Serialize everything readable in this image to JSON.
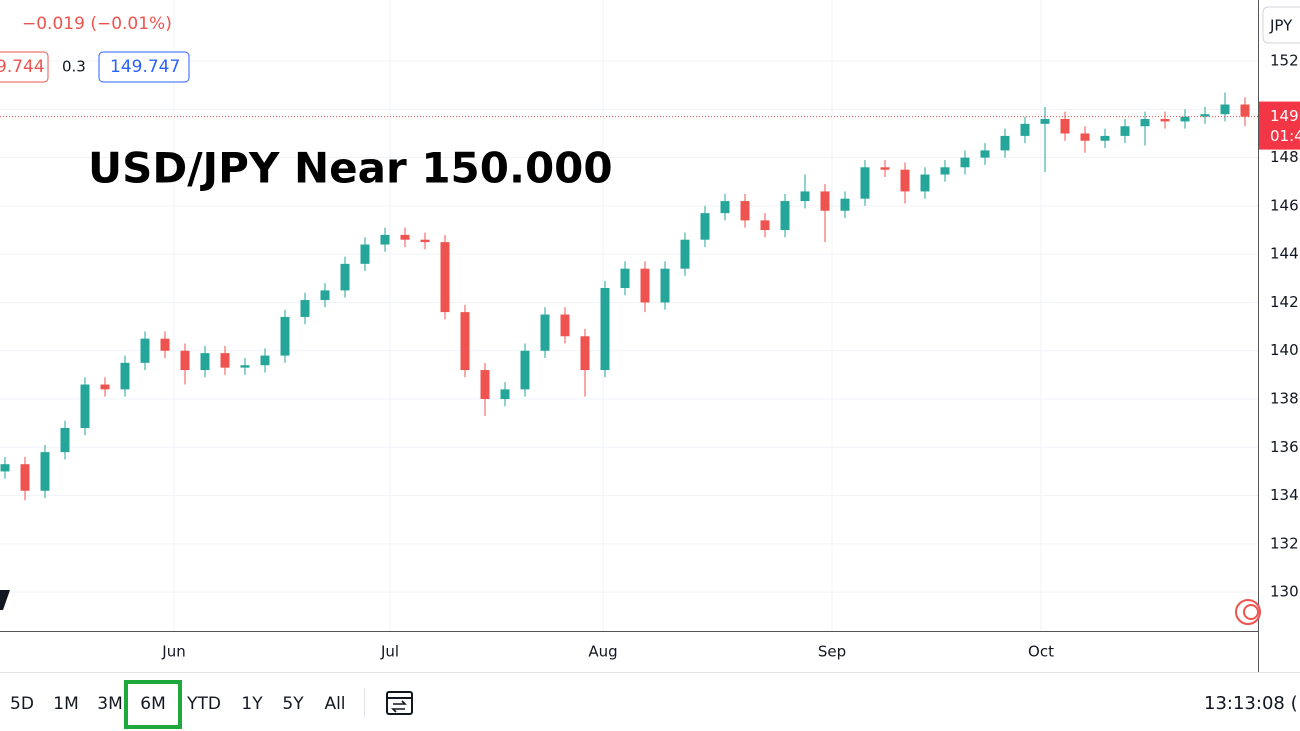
{
  "header": {
    "change": "−0.019 (−0.01%)",
    "bid": "9.744",
    "spread": "0.3",
    "ask": "149.747"
  },
  "currency": "JPY",
  "price_badge": {
    "price": "149",
    "countdown": "01:4"
  },
  "toolbar": {
    "ranges": [
      "5D",
      "1M",
      "3M",
      "6M",
      "YTD",
      "1Y",
      "5Y",
      "All"
    ],
    "active": "6M",
    "clock": "13:13:08 ("
  },
  "chart_data": {
    "type": "candlestick",
    "title": "USD/JPY Near 150.000",
    "up_color": "#26a69a",
    "down_color": "#ef5350",
    "open": [
      135.0,
      135.3,
      134.2,
      135.8,
      136.8,
      138.6,
      138.4,
      139.5,
      140.5,
      140.0,
      139.2,
      139.9,
      139.3,
      139.4,
      139.8,
      141.4,
      142.1,
      142.5,
      143.6,
      144.4,
      144.8,
      144.6,
      144.5,
      141.6,
      139.2,
      138.0,
      138.4,
      140.0,
      141.5,
      140.6,
      139.2,
      142.6,
      143.4,
      142.0,
      143.4,
      144.6,
      145.7,
      146.2,
      145.4,
      145.0,
      146.2,
      146.6,
      145.8,
      146.3,
      147.6,
      147.5,
      146.6,
      147.3,
      147.6,
      148.0,
      148.3,
      148.9,
      149.4,
      149.6,
      149.0,
      148.7,
      148.9,
      149.3,
      149.6,
      149.5,
      149.7,
      149.8,
      150.2
    ],
    "high": [
      135.6,
      135.6,
      136.1,
      137.1,
      138.9,
      138.9,
      139.8,
      140.8,
      140.8,
      140.3,
      140.2,
      140.2,
      139.7,
      140.1,
      141.7,
      142.4,
      142.8,
      143.9,
      144.7,
      145.1,
      145.1,
      144.9,
      144.8,
      141.9,
      139.5,
      138.7,
      140.3,
      141.8,
      141.8,
      140.9,
      142.9,
      143.7,
      143.7,
      143.7,
      144.9,
      146.0,
      146.5,
      146.5,
      145.7,
      146.5,
      147.3,
      146.9,
      146.6,
      147.9,
      147.9,
      147.8,
      147.6,
      147.9,
      148.3,
      148.6,
      149.2,
      149.7,
      150.1,
      149.9,
      149.3,
      149.2,
      149.6,
      149.9,
      149.9,
      150.0,
      150.1,
      150.7,
      150.5
    ],
    "low": [
      134.7,
      133.8,
      133.9,
      135.5,
      136.5,
      138.1,
      138.1,
      139.2,
      139.7,
      138.6,
      138.9,
      139.0,
      139.0,
      139.1,
      139.5,
      141.1,
      141.8,
      142.2,
      143.3,
      144.1,
      144.3,
      144.2,
      141.3,
      138.9,
      137.3,
      137.7,
      138.1,
      139.7,
      140.3,
      138.1,
      138.9,
      142.3,
      141.6,
      141.7,
      143.1,
      144.3,
      145.4,
      145.1,
      144.7,
      144.7,
      145.9,
      144.5,
      145.5,
      146.0,
      147.2,
      146.1,
      146.3,
      147.0,
      147.3,
      147.7,
      148.0,
      148.6,
      147.4,
      148.7,
      148.2,
      148.4,
      148.6,
      148.5,
      149.2,
      149.2,
      149.4,
      149.5,
      149.3
    ],
    "close": [
      135.3,
      134.2,
      135.8,
      136.8,
      138.6,
      138.4,
      139.5,
      140.5,
      140.0,
      139.2,
      139.9,
      139.3,
      139.4,
      139.8,
      141.4,
      142.1,
      142.5,
      143.6,
      144.4,
      144.8,
      144.6,
      144.5,
      141.6,
      139.2,
      138.0,
      138.4,
      140.0,
      141.5,
      140.6,
      139.2,
      142.6,
      143.4,
      142.0,
      143.4,
      144.6,
      145.7,
      146.2,
      145.4,
      145.0,
      146.2,
      146.6,
      145.8,
      146.3,
      147.6,
      147.5,
      146.6,
      147.3,
      147.6,
      148.0,
      148.3,
      148.9,
      149.4,
      149.6,
      149.0,
      148.7,
      148.9,
      149.3,
      149.6,
      149.5,
      149.7,
      149.8,
      150.2,
      149.7
    ],
    "xlim": [
      -0.25,
      62.65
    ],
    "xticks": [
      {
        "value": 8.45,
        "label": "Jun"
      },
      {
        "value": 19.25,
        "label": "Jul"
      },
      {
        "value": 29.9,
        "label": "Aug"
      },
      {
        "value": 41.35,
        "label": "Sep"
      },
      {
        "value": 51.8,
        "label": "Oct"
      }
    ],
    "ylim": [
      128.39,
      154.53
    ],
    "yticks": [
      130,
      132,
      134,
      136,
      138,
      140,
      142,
      144,
      146,
      148,
      150,
      152
    ],
    "grid": true
  }
}
